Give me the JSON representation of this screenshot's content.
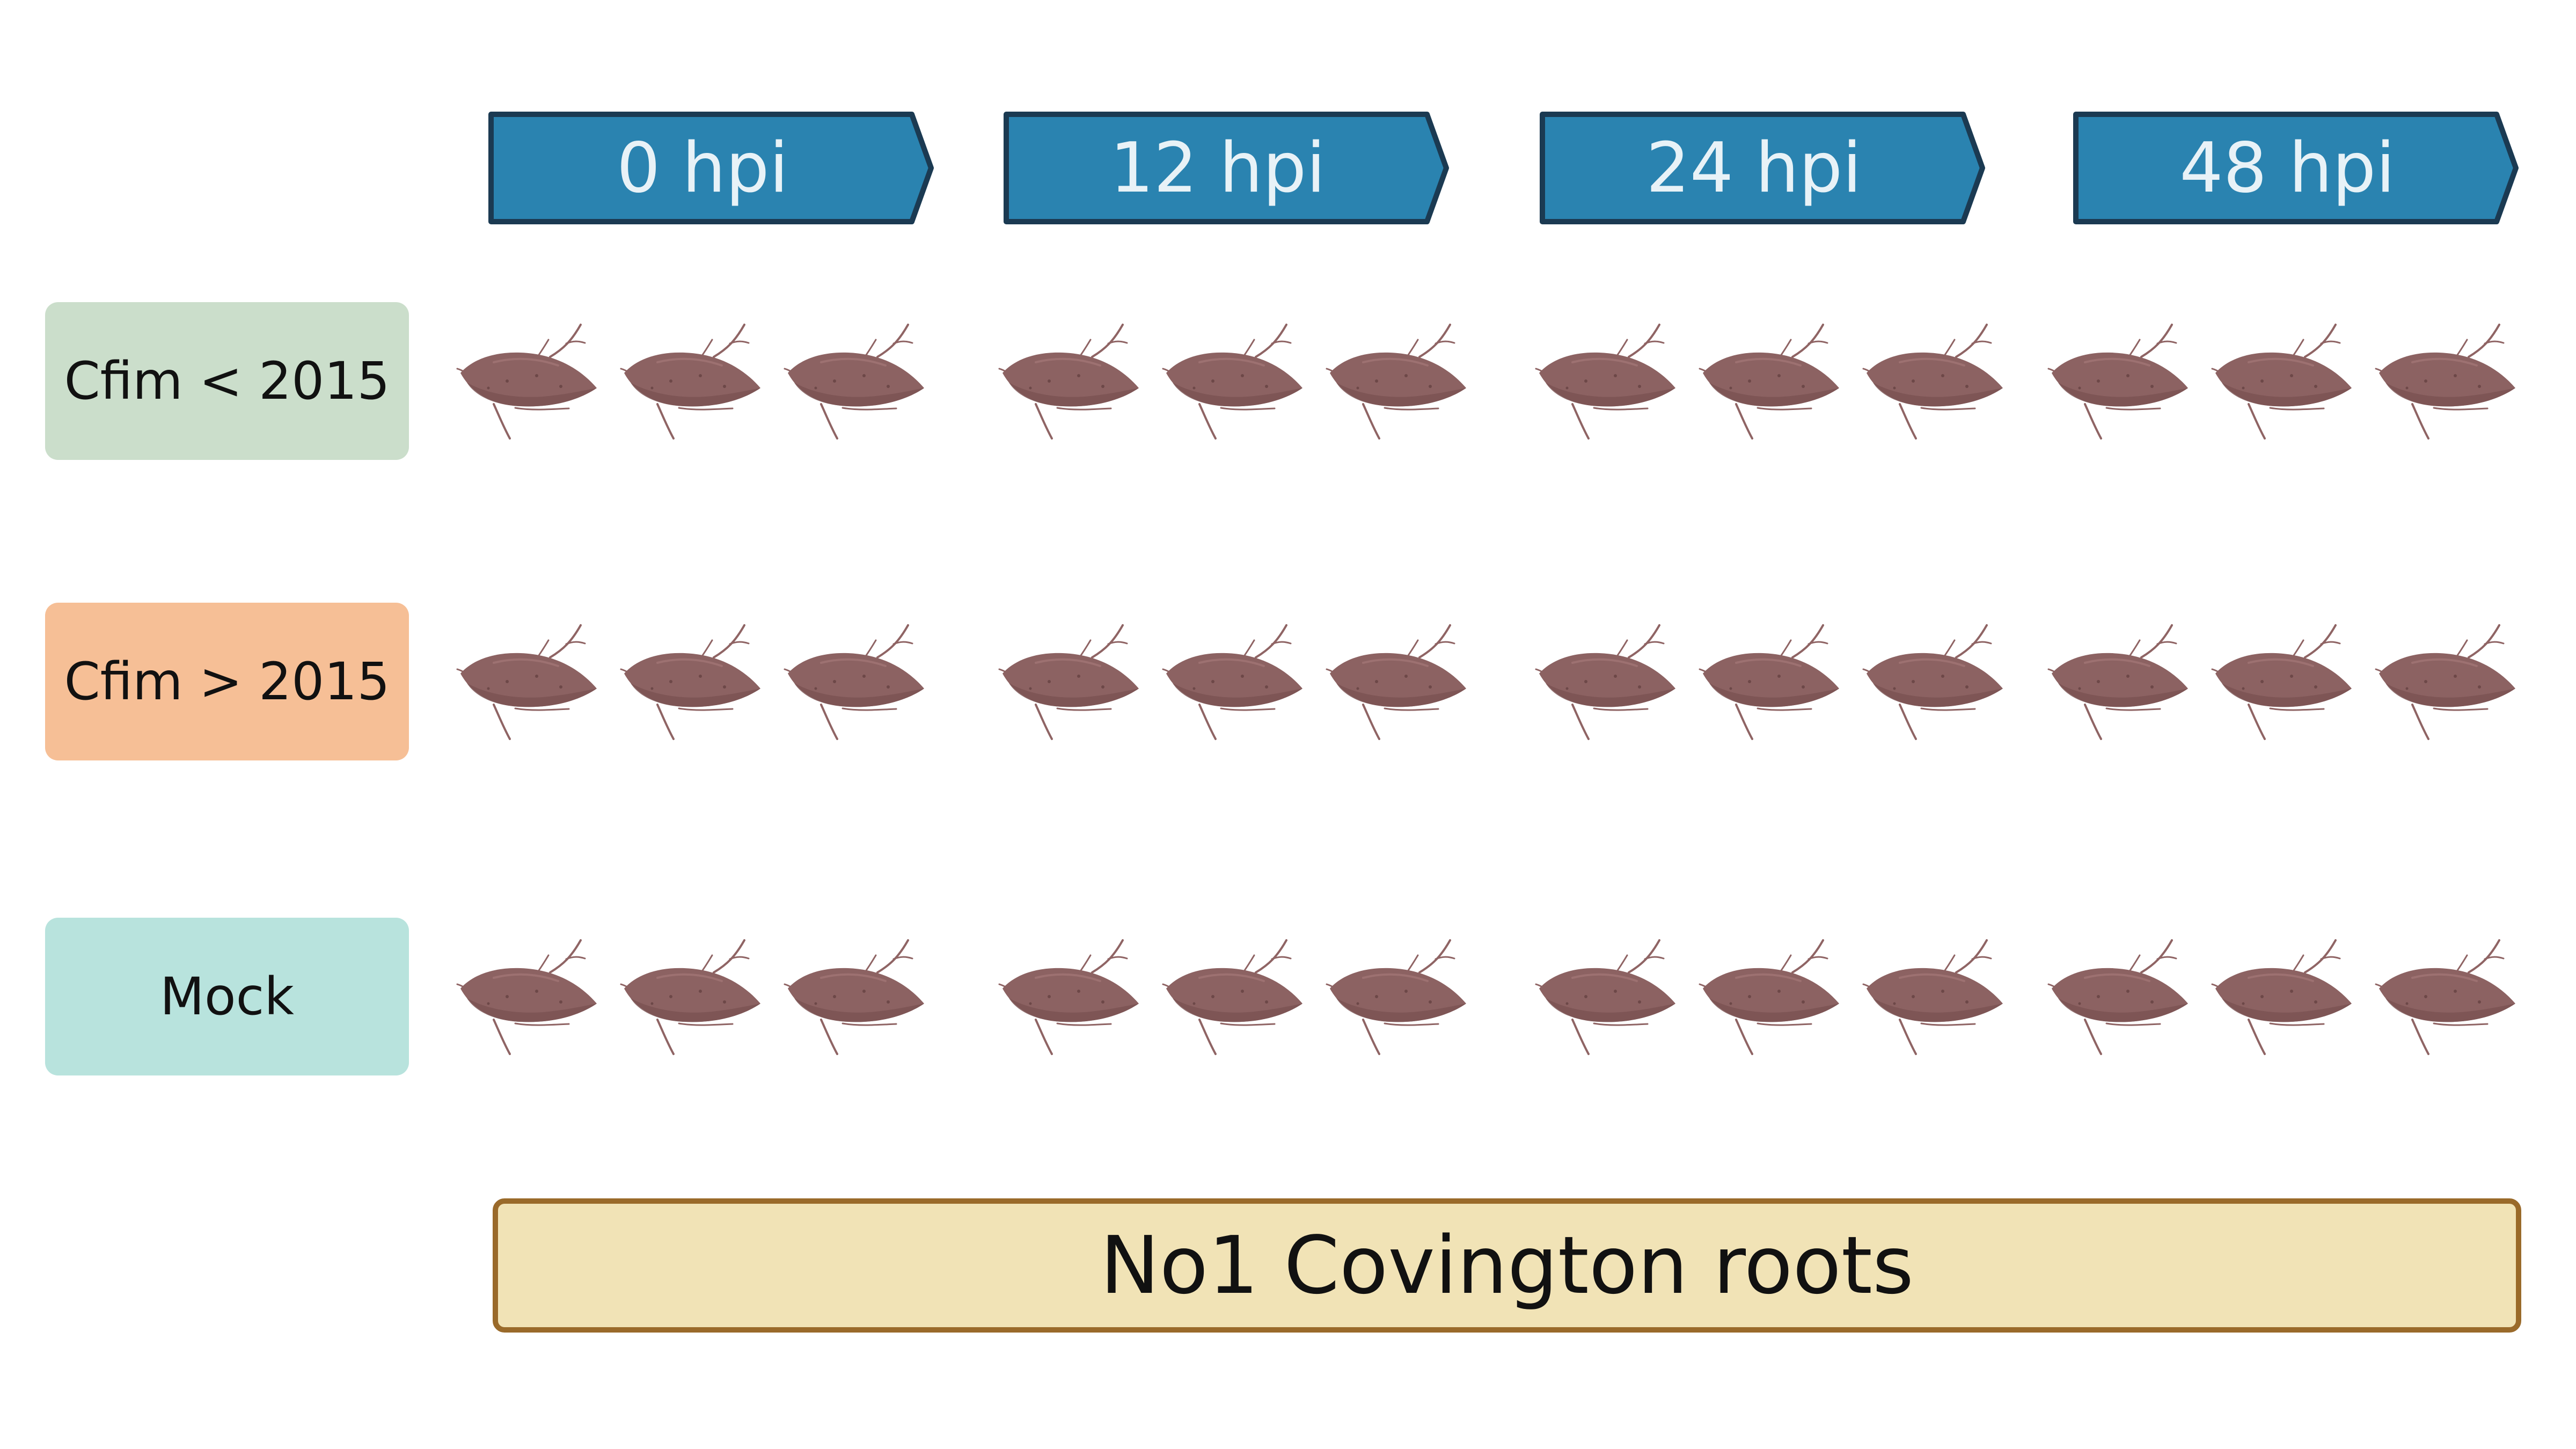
{
  "time_points": [
    "0 hpi",
    "12 hpi",
    "24 hpi",
    "48 hpi"
  ],
  "groups": [
    {
      "label": "Cfim < 2015",
      "color": "#cbdecb"
    },
    {
      "label": "Cfim > 2015",
      "color": "#f6bf96"
    },
    {
      "label": "Mock",
      "color": "#b8e3dd"
    }
  ],
  "replicates_per_time_point": 3,
  "banner": {
    "label": "No1 Covington roots"
  },
  "colors": {
    "arrow_fill": "#2a83b0",
    "arrow_stroke": "#1b3a52",
    "root_fill": "#8c6262",
    "root_dark": "#7a5353",
    "rootlet": "#8f6464",
    "banner_fill": "#f1e3b6",
    "banner_stroke": "#9a6a2a"
  },
  "icons": {
    "root": "sweet-potato-root-icon",
    "arrow": "chevron-arrow-shape"
  }
}
